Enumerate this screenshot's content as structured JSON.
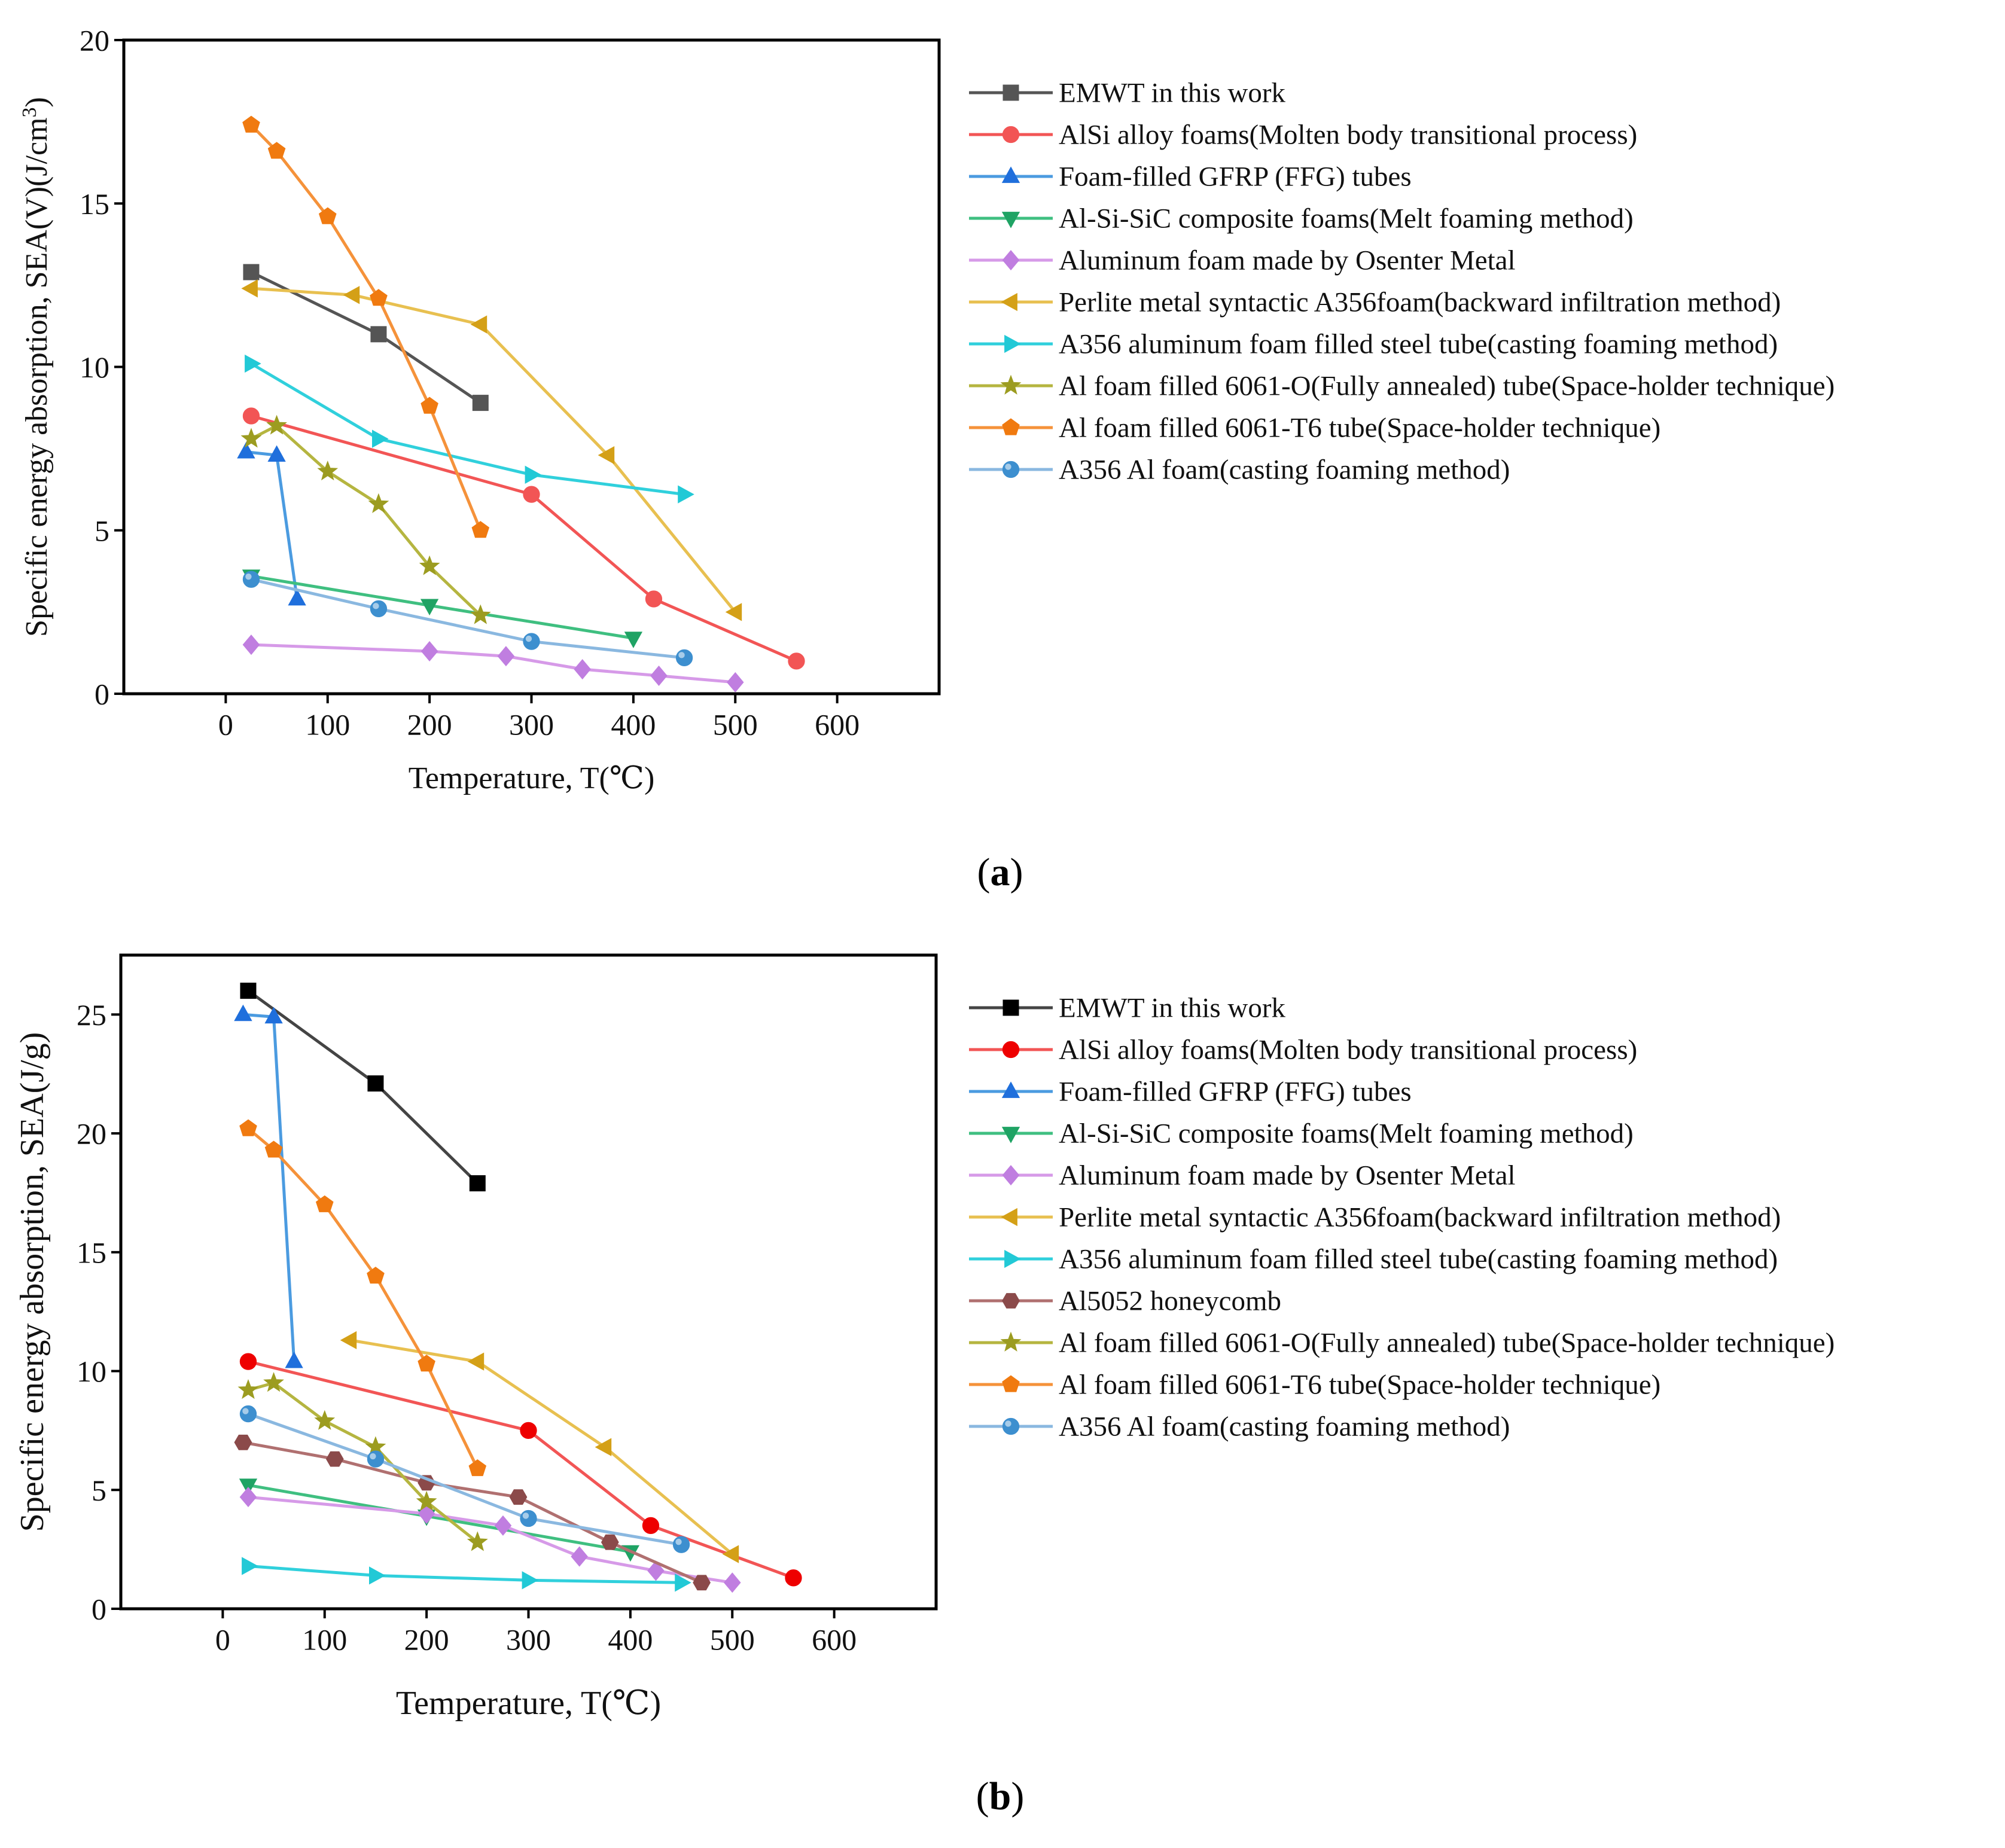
{
  "chart_data": [
    {
      "type": "line",
      "panel_label": "a",
      "xlabel": "Temperature, T(℃)",
      "ylabel": "Specific energy absorption, SEA(V)(J/cm",
      "ylabel_sup": "3",
      "ylabel_end": ")",
      "xlim": [
        -100,
        700
      ],
      "ylim": [
        0,
        20
      ],
      "xticks": [
        0,
        100,
        200,
        300,
        400,
        500,
        600
      ],
      "yticks": [
        0,
        5,
        10,
        15,
        20
      ],
      "legend_position": "right",
      "series": [
        {
          "name": "EMWT in this work",
          "color": "#555555",
          "marker": "square",
          "x": [
            25,
            150,
            250
          ],
          "y": [
            12.9,
            11.0,
            8.9
          ]
        },
        {
          "name": "AlSi alloy foams(Molten body transitional process)",
          "color": "#f25555",
          "marker": "circle",
          "x": [
            25,
            300,
            420,
            560
          ],
          "y": [
            8.5,
            6.1,
            2.9,
            1.0
          ]
        },
        {
          "name": "Foam-filled GFRP (FFG) tubes",
          "color": "#1f6fdc",
          "linecolor": "#4b9be0",
          "marker": "triangle-up",
          "x": [
            20,
            50,
            70
          ],
          "y": [
            7.4,
            7.3,
            2.9
          ]
        },
        {
          "name": "Al-Si-SiC composite foams(Melt foaming method)",
          "color": "#1fa364",
          "linecolor": "#3fbf80",
          "marker": "triangle-down",
          "x": [
            25,
            200,
            400
          ],
          "y": [
            3.6,
            2.7,
            1.7
          ]
        },
        {
          "name": "Aluminum foam made by Osenter Metal",
          "color": "#c07ee0",
          "linecolor": "#d69ae8",
          "marker": "diamond",
          "x": [
            25,
            200,
            275,
            350,
            425,
            500
          ],
          "y": [
            1.5,
            1.3,
            1.15,
            0.75,
            0.55,
            0.35
          ]
        },
        {
          "name": "Perlite metal syntactic A356foam(backward infiltration method)",
          "color": "#d4a017",
          "linecolor": "#e8c050",
          "marker": "triangle-left",
          "x": [
            25,
            125,
            250,
            375,
            500
          ],
          "y": [
            12.4,
            12.2,
            11.3,
            7.3,
            2.5
          ]
        },
        {
          "name": "A356 aluminum foam filled steel tube(casting foaming method)",
          "color": "#22c9d6",
          "linecolor": "#30d0dc",
          "marker": "triangle-right",
          "x": [
            25,
            150,
            300,
            450
          ],
          "y": [
            10.1,
            7.8,
            6.7,
            6.1
          ]
        },
        {
          "name": "Al foam filled 6061-O(Fully annealed) tube(Space-holder technique)",
          "color": "#9c9c20",
          "linecolor": "#b5b540",
          "marker": "star",
          "x": [
            25,
            50,
            100,
            150,
            200,
            250
          ],
          "y": [
            7.8,
            8.2,
            6.8,
            5.8,
            3.9,
            2.4
          ]
        },
        {
          "name": "Al foam filled 6061-T6 tube(Space-holder technique)",
          "color": "#f07a10",
          "linecolor": "#f5923a",
          "marker": "pentagon",
          "x": [
            25,
            50,
            100,
            150,
            200,
            250
          ],
          "y": [
            17.4,
            16.6,
            14.6,
            12.1,
            8.8,
            5.0
          ]
        },
        {
          "name": "A356 Al foam(casting foaming method)",
          "color": "#3d8fcf",
          "linecolor": "#8ab8e0",
          "marker": "sphere",
          "x": [
            25,
            150,
            300,
            450
          ],
          "y": [
            3.5,
            2.6,
            1.6,
            1.1
          ]
        }
      ]
    },
    {
      "type": "line",
      "panel_label": "b",
      "xlabel": "Temperature, T(℃)",
      "ylabel": "Specific energy absorption, SEA(J/g)",
      "xlim": [
        -100,
        700
      ],
      "ylim": [
        0,
        27.5
      ],
      "xticks": [
        0,
        100,
        200,
        300,
        400,
        500,
        600
      ],
      "yticks": [
        0,
        5,
        10,
        15,
        20,
        25
      ],
      "legend_position": "right",
      "series": [
        {
          "name": "EMWT in this work",
          "color": "#000000",
          "linecolor": "#444444",
          "marker": "square",
          "x": [
            25,
            150,
            250
          ],
          "y": [
            26.0,
            22.1,
            17.9
          ]
        },
        {
          "name": "AlSi alloy foams(Molten body transitional process)",
          "color": "#ee0000",
          "linecolor": "#f25555",
          "marker": "circle",
          "x": [
            25,
            300,
            420,
            560
          ],
          "y": [
            10.4,
            7.5,
            3.5,
            1.3
          ]
        },
        {
          "name": "Foam-filled GFRP (FFG) tubes",
          "color": "#1f6fdc",
          "linecolor": "#4b9be0",
          "marker": "triangle-up",
          "x": [
            20,
            50,
            70
          ],
          "y": [
            25.0,
            24.9,
            10.4
          ]
        },
        {
          "name": "Al-Si-SiC composite foams(Melt foaming method)",
          "color": "#1fa364",
          "linecolor": "#3fbf80",
          "marker": "triangle-down",
          "x": [
            25,
            200,
            400
          ],
          "y": [
            5.2,
            3.9,
            2.4
          ]
        },
        {
          "name": "Aluminum foam made by Osenter Metal",
          "color": "#c07ee0",
          "linecolor": "#d69ae8",
          "marker": "diamond",
          "x": [
            25,
            200,
            275,
            350,
            425,
            500
          ],
          "y": [
            4.7,
            4.0,
            3.5,
            2.2,
            1.6,
            1.1
          ]
        },
        {
          "name": "Perlite metal syntactic A356foam(backward infiltration method)",
          "color": "#d4a017",
          "linecolor": "#e8c050",
          "marker": "triangle-left",
          "x": [
            125,
            250,
            375,
            500
          ],
          "y": [
            11.3,
            10.4,
            6.8,
            2.3
          ]
        },
        {
          "name": "A356 aluminum foam filled steel tube(casting foaming method)",
          "color": "#22c9d6",
          "linecolor": "#30d0dc",
          "marker": "triangle-right",
          "x": [
            25,
            150,
            300,
            450
          ],
          "y": [
            1.8,
            1.4,
            1.2,
            1.1
          ]
        },
        {
          "name": "Al5052 honeycomb",
          "color": "#8b4a4a",
          "linecolor": "#b07070",
          "marker": "hexagon",
          "x": [
            20,
            110,
            200,
            290,
            380,
            470
          ],
          "y": [
            7.0,
            6.3,
            5.3,
            4.7,
            2.8,
            1.1
          ]
        },
        {
          "name": "Al foam filled 6061-O(Fully annealed) tube(Space-holder technique)",
          "color": "#9c9c20",
          "linecolor": "#b5b540",
          "marker": "star",
          "x": [
            25,
            50,
            100,
            150,
            200,
            250
          ],
          "y": [
            9.2,
            9.5,
            7.9,
            6.8,
            4.5,
            2.8
          ]
        },
        {
          "name": "Al foam filled 6061-T6 tube(Space-holder technique)",
          "color": "#f07a10",
          "linecolor": "#f5923a",
          "marker": "pentagon",
          "x": [
            25,
            50,
            100,
            150,
            200,
            250
          ],
          "y": [
            20.2,
            19.3,
            17.0,
            14.0,
            10.3,
            5.9
          ]
        },
        {
          "name": "A356 Al foam(casting foaming method)",
          "color": "#3d8fcf",
          "linecolor": "#8ab8e0",
          "marker": "sphere",
          "x": [
            25,
            150,
            300,
            450
          ],
          "y": [
            8.2,
            6.3,
            3.8,
            2.7
          ]
        }
      ]
    }
  ]
}
